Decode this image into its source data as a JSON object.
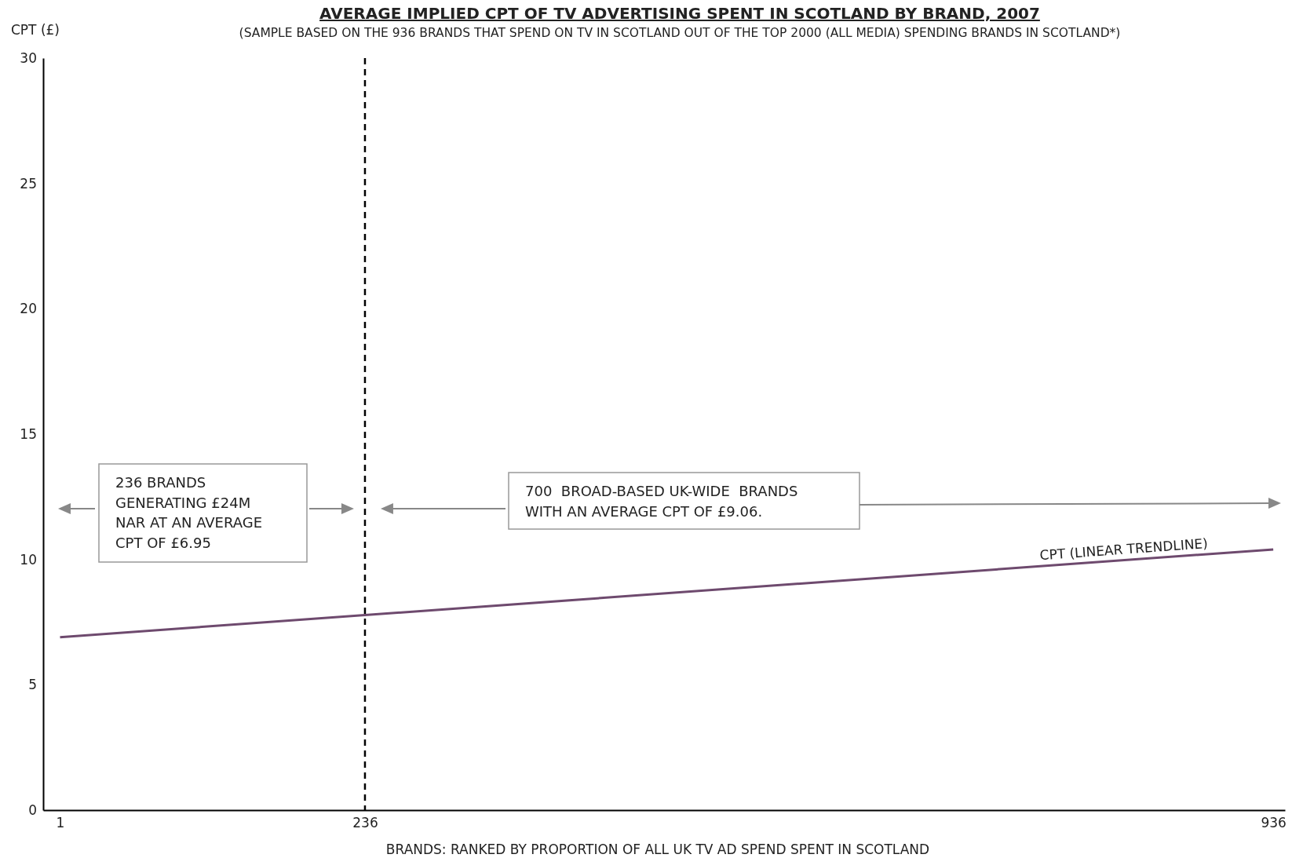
{
  "chart_data": {
    "type": "line",
    "title": "AVERAGE IMPLIED CPT OF TV ADVERTISING SPENT IN SCOTLAND BY BRAND, 2007",
    "subtitle": "(SAMPLE BASED ON THE 936 BRANDS THAT SPEND ON TV IN SCOTLAND OUT OF THE TOP 2000 (ALL MEDIA) SPENDING BRANDS IN SCOTLAND*)",
    "xlabel": "BRANDS: RANKED BY PROPORTION OF ALL UK TV AD SPEND SPENT IN SCOTLAND",
    "ylabel": "CPT (£)",
    "x": [
      1,
      936
    ],
    "series": [
      {
        "name": "CPT (LINEAR TRENDLINE)",
        "color": "#6e4a6e",
        "values": [
          6.9,
          10.4
        ]
      }
    ],
    "xlim": [
      -12,
      945
    ],
    "xticks": [
      1,
      236,
      936
    ],
    "ylim": [
      0,
      30
    ],
    "yticks": [
      0,
      5,
      10,
      15,
      20,
      25,
      30
    ],
    "grid": false,
    "legend": false,
    "marker": "none",
    "line_style": "solid",
    "ref_lines": [
      {
        "axis": "x",
        "value": 236,
        "line_style": "dashed",
        "color": "#000000"
      }
    ],
    "annotations": [
      "236 BRANDS\nGENERATING £24M\nNAR AT AN AVERAGE\nCPT OF £6.95",
      "700  BROAD-BASED UK-WIDE  BRANDS\nWITH AN AVERAGE CPT OF £9.06."
    ]
  }
}
